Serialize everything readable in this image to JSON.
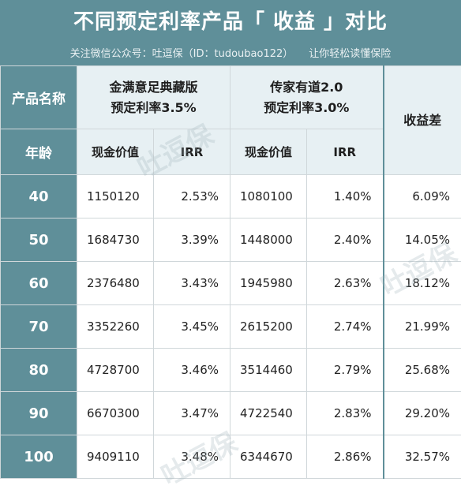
{
  "title": "不同预定利率产品「 收益 」对比",
  "subtitle": {
    "left": "关注微信公众号：吐逗保（ID：tudoubao122）",
    "right": "让你轻松读懂保险"
  },
  "table": {
    "row_header_label": "产品名称",
    "age_label": "年龄",
    "product_a": {
      "name": "金满意足典藏版",
      "rate": "预定利率3.5%"
    },
    "product_b": {
      "name": "传家有道2.0",
      "rate": "预定利率3.0%"
    },
    "diff_header": "收益差",
    "col_cash": "现金价值",
    "col_irr": "IRR",
    "rows": [
      {
        "age": "40",
        "a_cash": "1150120",
        "a_irr": "2.53%",
        "b_cash": "1080100",
        "b_irr": "1.40%",
        "diff": "6.09%"
      },
      {
        "age": "50",
        "a_cash": "1684730",
        "a_irr": "3.39%",
        "b_cash": "1448000",
        "b_irr": "2.40%",
        "diff": "14.05%"
      },
      {
        "age": "60",
        "a_cash": "2376480",
        "a_irr": "3.43%",
        "b_cash": "1945980",
        "b_irr": "2.63%",
        "diff": "18.12%"
      },
      {
        "age": "70",
        "a_cash": "3352260",
        "a_irr": "3.45%",
        "b_cash": "2615200",
        "b_irr": "2.74%",
        "diff": "21.99%"
      },
      {
        "age": "80",
        "a_cash": "4728700",
        "a_irr": "3.46%",
        "b_cash": "3514460",
        "b_irr": "2.79%",
        "diff": "25.68%"
      },
      {
        "age": "90",
        "a_cash": "6670300",
        "a_irr": "3.47%",
        "b_cash": "4722540",
        "b_irr": "2.83%",
        "diff": "29.20%"
      },
      {
        "age": "100",
        "a_cash": "9409110",
        "a_irr": "3.48%",
        "b_cash": "6344670",
        "b_irr": "2.86%",
        "diff": "32.57%"
      }
    ]
  },
  "watermark": "吐逗保",
  "colors": {
    "header_teal": "#5f8f99",
    "header_light": "#e7f0f3"
  }
}
